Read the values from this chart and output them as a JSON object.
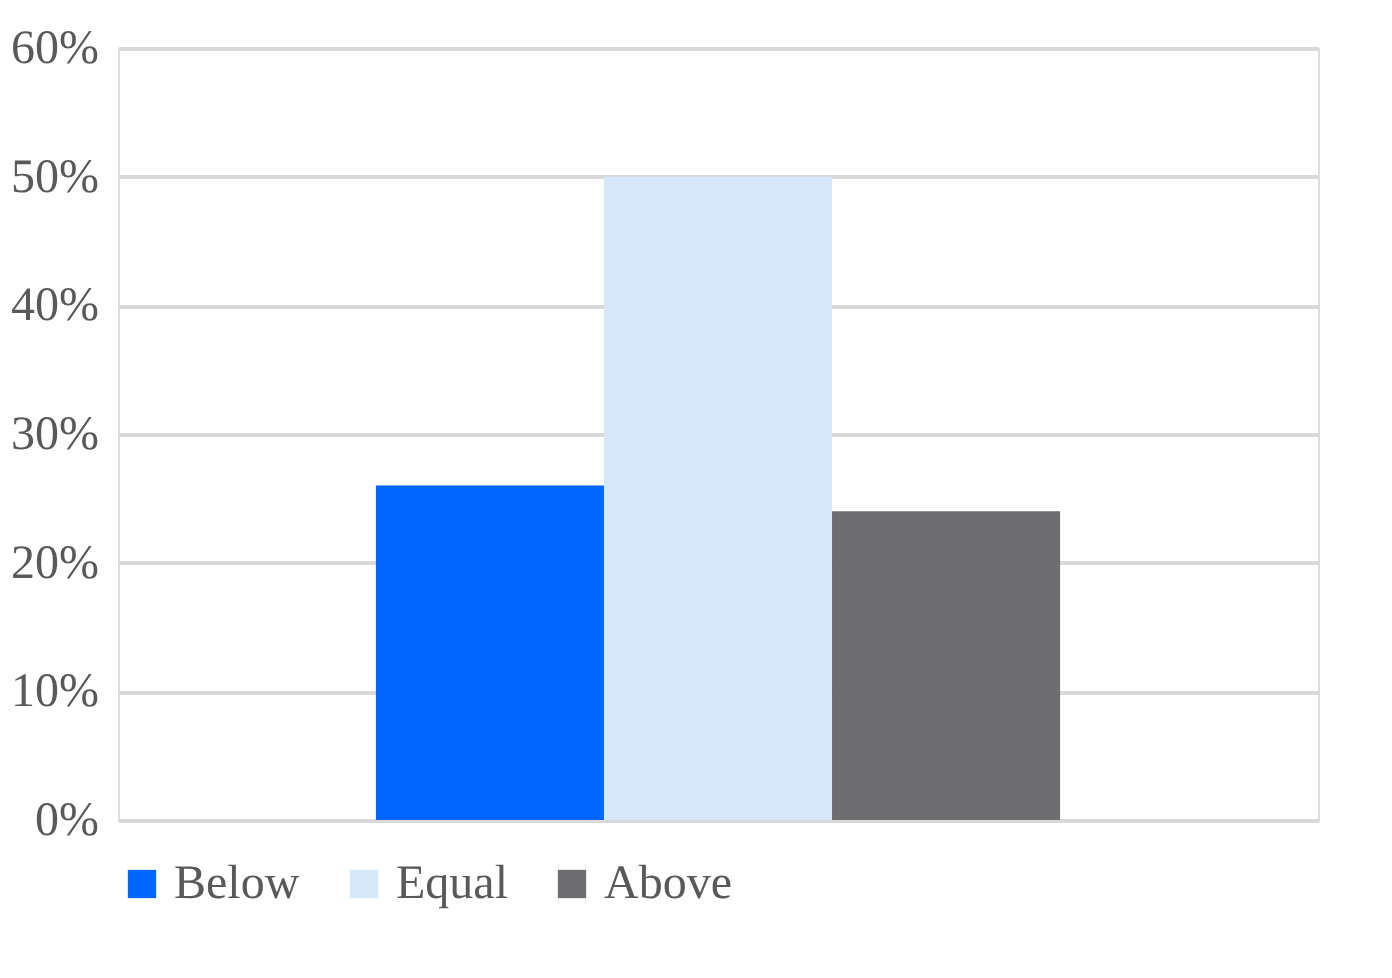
{
  "chart_data": {
    "type": "bar",
    "categories": [
      null
    ],
    "series": [
      {
        "name": "Below",
        "color": "#0066ff",
        "values": [
          26
        ]
      },
      {
        "name": "Equal",
        "color": "#d6e6fb",
        "values": [
          50
        ]
      },
      {
        "name": "Above",
        "color": "#6d6d6f",
        "values": [
          24
        ]
      }
    ],
    "ylim": [
      0,
      60
    ],
    "yticks": [
      {
        "value": 0,
        "label": "0%"
      },
      {
        "value": 10,
        "label": "10%"
      },
      {
        "value": 20,
        "label": "20%"
      },
      {
        "value": 30,
        "label": "30%"
      },
      {
        "value": 40,
        "label": "40%"
      },
      {
        "value": 50,
        "label": "50%"
      },
      {
        "value": 60,
        "label": "60%"
      }
    ],
    "grid": "y",
    "legend": "bottom"
  }
}
